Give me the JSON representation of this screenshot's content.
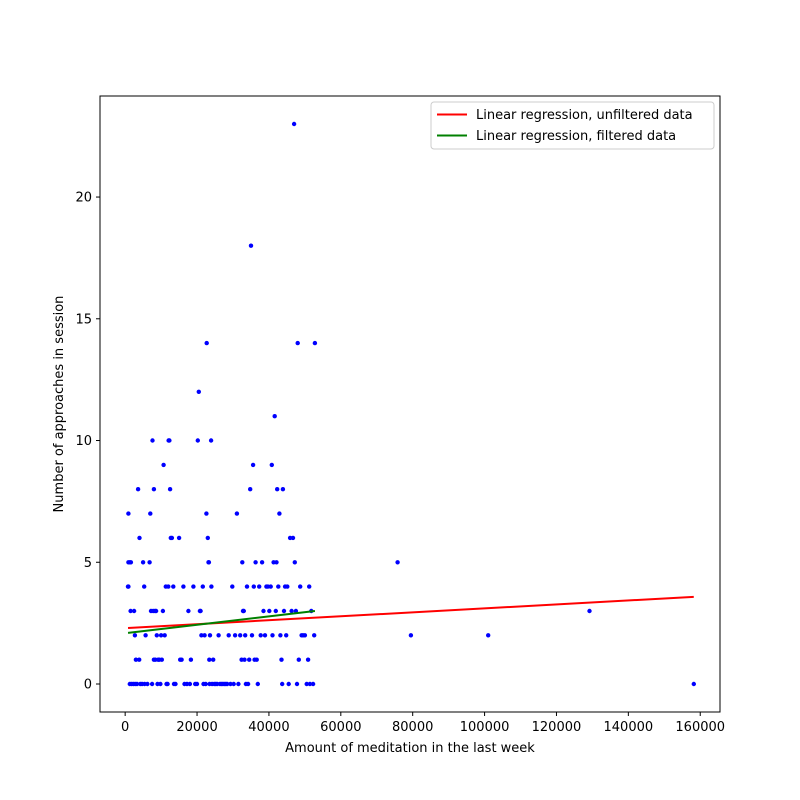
{
  "chart_data": {
    "type": "scatter",
    "title": "",
    "xlabel": "Amount of meditation in the last week",
    "ylabel": "Number of approaches in session",
    "xlim": [
      -7000,
      165500
    ],
    "ylim": [
      -1.15,
      24.15
    ],
    "xticks": [
      0,
      20000,
      40000,
      60000,
      80000,
      100000,
      120000,
      140000,
      160000
    ],
    "xtick_labels": [
      "0",
      "20000",
      "40000",
      "60000",
      "80000",
      "100000",
      "120000",
      "140000",
      "160000"
    ],
    "yticks": [
      0,
      5,
      10,
      15,
      20
    ],
    "ytick_labels": [
      "0",
      "5",
      "10",
      "15",
      "20"
    ],
    "grid": false,
    "legend_position": "top-right",
    "points_color": "#0000ff",
    "points": [
      [
        900,
        7
      ],
      [
        900,
        5
      ],
      [
        1300,
        5
      ],
      [
        1600,
        5
      ],
      [
        900,
        4
      ],
      [
        1500,
        3
      ],
      [
        2500,
        3
      ],
      [
        800,
        4
      ],
      [
        1300,
        0
      ],
      [
        1800,
        0
      ],
      [
        2300,
        0
      ],
      [
        2800,
        0
      ],
      [
        3300,
        0
      ],
      [
        2700,
        2
      ],
      [
        3000,
        1
      ],
      [
        3900,
        1
      ],
      [
        3600,
        8
      ],
      [
        4000,
        6
      ],
      [
        5000,
        5
      ],
      [
        5300,
        4
      ],
      [
        4200,
        0
      ],
      [
        4700,
        0
      ],
      [
        5400,
        0
      ],
      [
        6200,
        0
      ],
      [
        5700,
        2
      ],
      [
        7000,
        7
      ],
      [
        6800,
        5
      ],
      [
        7200,
        3
      ],
      [
        7800,
        3
      ],
      [
        7600,
        10
      ],
      [
        8000,
        8
      ],
      [
        8300,
        3
      ],
      [
        8600,
        3
      ],
      [
        7500,
        0
      ],
      [
        8000,
        1
      ],
      [
        8400,
        1
      ],
      [
        8800,
        2
      ],
      [
        9000,
        0
      ],
      [
        9200,
        1
      ],
      [
        9500,
        1
      ],
      [
        9800,
        0
      ],
      [
        10000,
        2
      ],
      [
        10200,
        1
      ],
      [
        10500,
        3
      ],
      [
        10700,
        9
      ],
      [
        11000,
        2
      ],
      [
        11300,
        4
      ],
      [
        11500,
        0
      ],
      [
        11800,
        0
      ],
      [
        12000,
        4
      ],
      [
        12100,
        10
      ],
      [
        12300,
        10
      ],
      [
        12500,
        8
      ],
      [
        12700,
        6
      ],
      [
        13000,
        6
      ],
      [
        13400,
        4
      ],
      [
        13600,
        0
      ],
      [
        14000,
        0
      ],
      [
        15000,
        6
      ],
      [
        15300,
        1
      ],
      [
        15700,
        1
      ],
      [
        16200,
        4
      ],
      [
        16500,
        0
      ],
      [
        17200,
        0
      ],
      [
        17600,
        3
      ],
      [
        18000,
        0
      ],
      [
        18300,
        1
      ],
      [
        19000,
        4
      ],
      [
        19500,
        0
      ],
      [
        20000,
        0
      ],
      [
        20200,
        10
      ],
      [
        20500,
        12
      ],
      [
        20800,
        3
      ],
      [
        21000,
        3
      ],
      [
        21200,
        2
      ],
      [
        21600,
        4
      ],
      [
        21800,
        0
      ],
      [
        22100,
        2
      ],
      [
        22400,
        0
      ],
      [
        22600,
        7
      ],
      [
        22700,
        14
      ],
      [
        23000,
        6
      ],
      [
        23200,
        5
      ],
      [
        23300,
        5
      ],
      [
        23400,
        1
      ],
      [
        23500,
        0
      ],
      [
        23600,
        2
      ],
      [
        23900,
        10
      ],
      [
        24000,
        4
      ],
      [
        24200,
        0
      ],
      [
        24500,
        1
      ],
      [
        24800,
        0
      ],
      [
        25200,
        0
      ],
      [
        25600,
        0
      ],
      [
        26000,
        2
      ],
      [
        26400,
        0
      ],
      [
        26800,
        0
      ],
      [
        27200,
        0
      ],
      [
        27600,
        0
      ],
      [
        28000,
        0
      ],
      [
        28400,
        0
      ],
      [
        28800,
        2
      ],
      [
        29300,
        0
      ],
      [
        29800,
        4
      ],
      [
        30200,
        0
      ],
      [
        30600,
        2
      ],
      [
        31100,
        7
      ],
      [
        31500,
        0
      ],
      [
        32000,
        2
      ],
      [
        32400,
        1
      ],
      [
        32600,
        5
      ],
      [
        32800,
        3
      ],
      [
        33000,
        3
      ],
      [
        33200,
        1
      ],
      [
        33400,
        2
      ],
      [
        33600,
        0
      ],
      [
        33900,
        4
      ],
      [
        34200,
        0
      ],
      [
        34500,
        1
      ],
      [
        34800,
        8
      ],
      [
        35000,
        18
      ],
      [
        35300,
        2
      ],
      [
        35600,
        9
      ],
      [
        35800,
        4
      ],
      [
        36000,
        1
      ],
      [
        36300,
        5
      ],
      [
        36600,
        1
      ],
      [
        36900,
        0
      ],
      [
        37300,
        4
      ],
      [
        37700,
        2
      ],
      [
        38100,
        5
      ],
      [
        38500,
        3
      ],
      [
        38900,
        2
      ],
      [
        39300,
        4
      ],
      [
        39700,
        4
      ],
      [
        40100,
        3
      ],
      [
        40500,
        4
      ],
      [
        40800,
        9
      ],
      [
        41000,
        2
      ],
      [
        41300,
        5
      ],
      [
        41600,
        11
      ],
      [
        41900,
        3
      ],
      [
        42100,
        5
      ],
      [
        42300,
        8
      ],
      [
        42600,
        4
      ],
      [
        42900,
        7
      ],
      [
        43200,
        2
      ],
      [
        43500,
        1
      ],
      [
        43700,
        0
      ],
      [
        43900,
        8
      ],
      [
        44200,
        3
      ],
      [
        44500,
        4
      ],
      [
        44800,
        2
      ],
      [
        45100,
        4
      ],
      [
        45500,
        0
      ],
      [
        45900,
        6
      ],
      [
        46300,
        3
      ],
      [
        46700,
        6
      ],
      [
        47000,
        23
      ],
      [
        47200,
        5
      ],
      [
        47500,
        3
      ],
      [
        47800,
        0
      ],
      [
        48000,
        14
      ],
      [
        48300,
        1
      ],
      [
        48700,
        4
      ],
      [
        49100,
        2
      ],
      [
        49500,
        2
      ],
      [
        50000,
        2
      ],
      [
        50500,
        0
      ],
      [
        50900,
        1
      ],
      [
        51200,
        4
      ],
      [
        51400,
        0
      ],
      [
        51800,
        3
      ],
      [
        52300,
        0
      ],
      [
        52600,
        2
      ],
      [
        52800,
        14
      ],
      [
        75800,
        5
      ],
      [
        79500,
        2
      ],
      [
        101000,
        2
      ],
      [
        129200,
        3
      ],
      [
        158200,
        0
      ]
    ],
    "series": [
      {
        "name": "Linear regression, unfiltered data",
        "color": "#ff0000",
        "x": [
          800,
          158200
        ],
        "y": [
          2.3,
          3.58
        ]
      },
      {
        "name": "Linear regression, filtered data",
        "color": "#008000",
        "x": [
          800,
          52800
        ],
        "y": [
          2.1,
          3.0
        ]
      }
    ]
  }
}
